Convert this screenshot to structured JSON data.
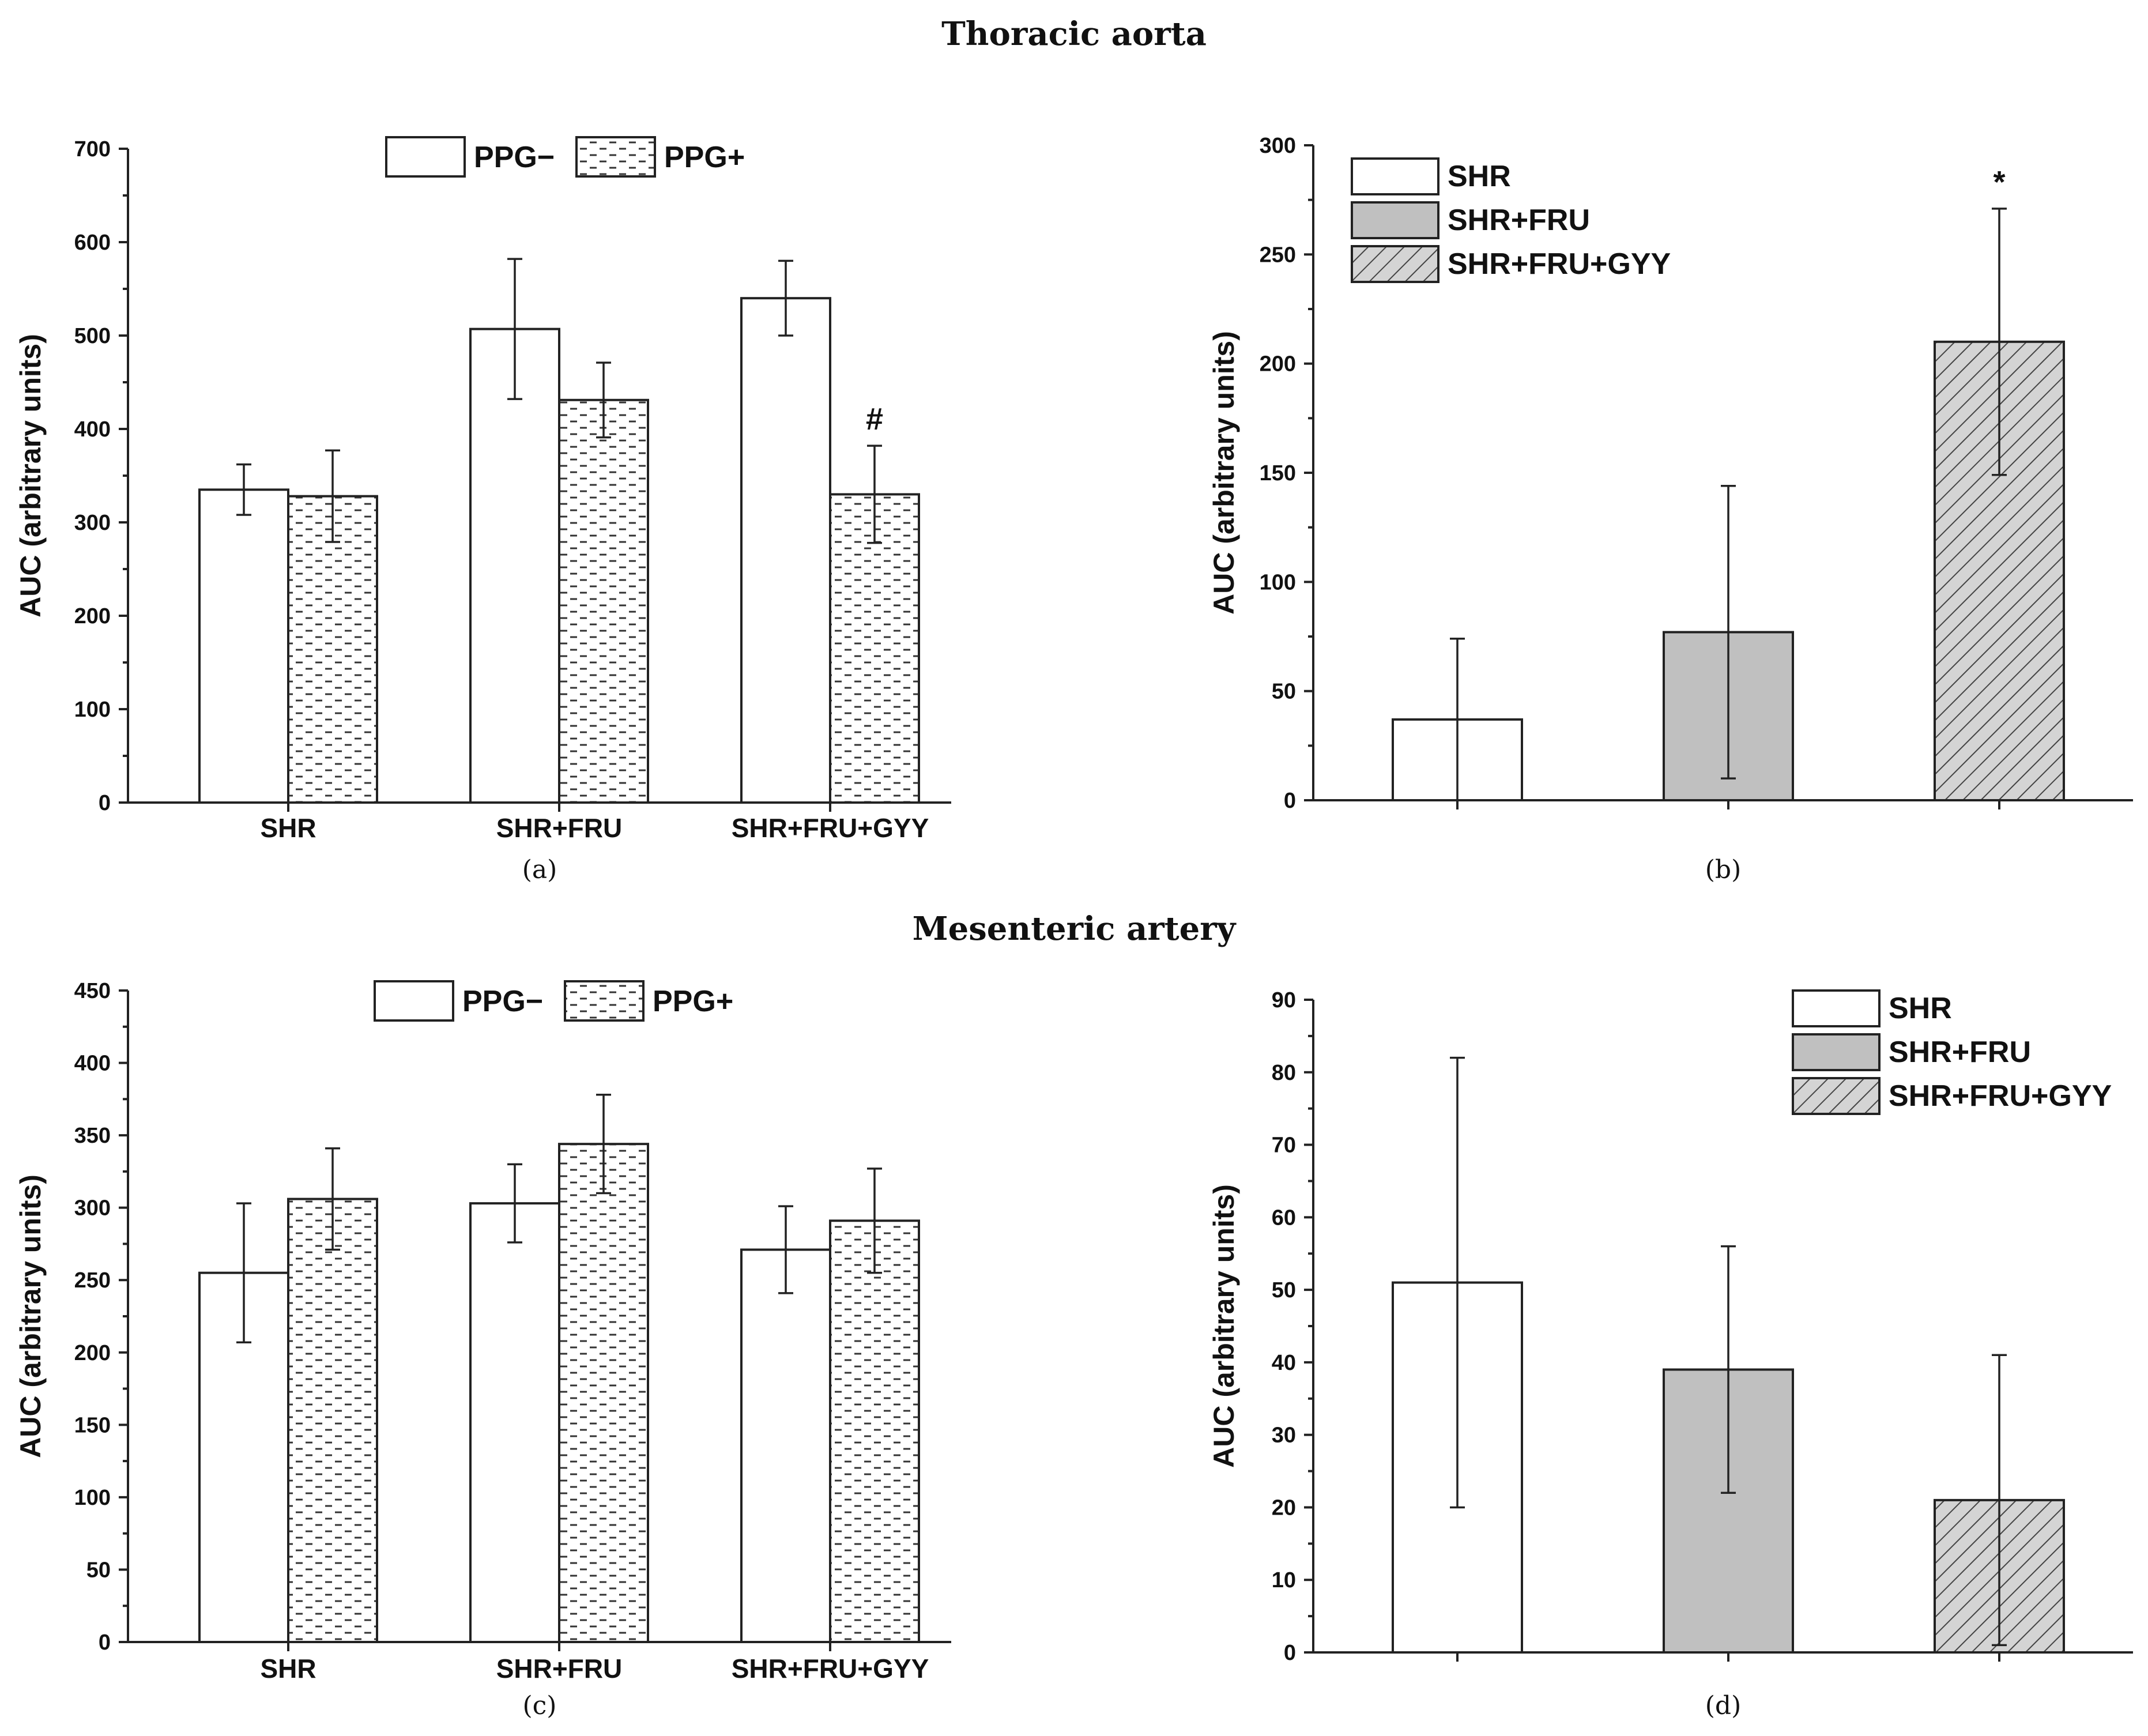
{
  "figure": {
    "titles": {
      "top": "Thoracic aorta",
      "bottom": "Mesenteric artery"
    },
    "colors": {
      "axis": "#222222",
      "open_fill": "#ffffff",
      "gray_fill": "#c0c0c0",
      "hatch_fill": "#d4d4d4"
    }
  },
  "chart_data": [
    {
      "id": "a",
      "panel_label": "(a)",
      "type": "bar",
      "title": "Thoracic aorta",
      "ylabel": "AUC (arbitrary units)",
      "xlabel": "",
      "ylim": [
        0,
        700
      ],
      "yticks": [
        "0",
        "100",
        "200",
        "300",
        "400",
        "500",
        "600",
        "700"
      ],
      "categories": [
        "SHR",
        "SHR+FRU",
        "SHR+FRU+GYY"
      ],
      "legend": {
        "position": "top-center",
        "entries": [
          "PPG−",
          "PPG+"
        ]
      },
      "series": [
        {
          "name": "PPG−",
          "pattern": "open",
          "values": [
            335,
            507,
            540
          ],
          "errors": [
            27,
            75,
            40
          ]
        },
        {
          "name": "PPG+",
          "pattern": "dashed",
          "values": [
            328,
            431,
            330
          ],
          "errors": [
            49,
            40,
            52
          ]
        }
      ],
      "annotations": [
        {
          "text": "#",
          "series": "PPG+",
          "category": "SHR+FRU+GYY"
        }
      ]
    },
    {
      "id": "b",
      "panel_label": "(b)",
      "type": "bar",
      "title": "Thoracic aorta",
      "ylabel": "AUC (arbitrary units)",
      "xlabel": "",
      "ylim": [
        0,
        300
      ],
      "yticks": [
        "0",
        "50",
        "100",
        "150",
        "200",
        "250",
        "300"
      ],
      "categories": [
        "SHR",
        "SHR+FRU",
        "SHR+FRU+GYY"
      ],
      "legend": {
        "position": "top-left",
        "entries": [
          "SHR",
          "SHR+FRU",
          "SHR+FRU+GYY"
        ]
      },
      "series": [
        {
          "name": "AUC",
          "patterns": [
            "open",
            "gray",
            "hatched"
          ],
          "values": [
            37,
            77,
            210
          ],
          "errors": [
            37,
            67,
            61
          ]
        }
      ],
      "annotations": [
        {
          "text": "*",
          "category": "SHR+FRU+GYY"
        }
      ]
    },
    {
      "id": "c",
      "panel_label": "(c)",
      "type": "bar",
      "title": "Mesenteric artery",
      "ylabel": "AUC (arbitrary units)",
      "xlabel": "",
      "ylim": [
        0,
        450
      ],
      "yticks": [
        "0",
        "50",
        "100",
        "150",
        "200",
        "250",
        "300",
        "350",
        "400",
        "450"
      ],
      "categories": [
        "SHR",
        "SHR+FRU",
        "SHR+FRU+GYY"
      ],
      "legend": {
        "position": "top-center",
        "entries": [
          "PPG−",
          "PPG+"
        ]
      },
      "series": [
        {
          "name": "PPG−",
          "pattern": "open",
          "values": [
            255,
            303,
            271
          ],
          "errors": [
            48,
            27,
            30
          ]
        },
        {
          "name": "PPG+",
          "pattern": "dashed",
          "values": [
            306,
            344,
            291
          ],
          "errors": [
            35,
            34,
            36
          ]
        }
      ],
      "annotations": []
    },
    {
      "id": "d",
      "panel_label": "(d)",
      "type": "bar",
      "title": "Mesenteric artery",
      "ylabel": "AUC (arbitrary units)",
      "xlabel": "",
      "ylim": [
        0,
        90
      ],
      "yticks": [
        "0",
        "10",
        "20",
        "30",
        "40",
        "50",
        "60",
        "70",
        "80",
        "90"
      ],
      "categories": [
        "SHR",
        "SHR+FRU",
        "SHR+FRU+GYY"
      ],
      "legend": {
        "position": "top-right",
        "entries": [
          "SHR",
          "SHR+FRU",
          "SHR+FRU+GYY"
        ]
      },
      "series": [
        {
          "name": "AUC",
          "patterns": [
            "open",
            "gray",
            "hatched"
          ],
          "values": [
            51,
            39,
            21
          ],
          "errors": [
            31,
            17,
            20
          ]
        }
      ],
      "annotations": []
    }
  ]
}
